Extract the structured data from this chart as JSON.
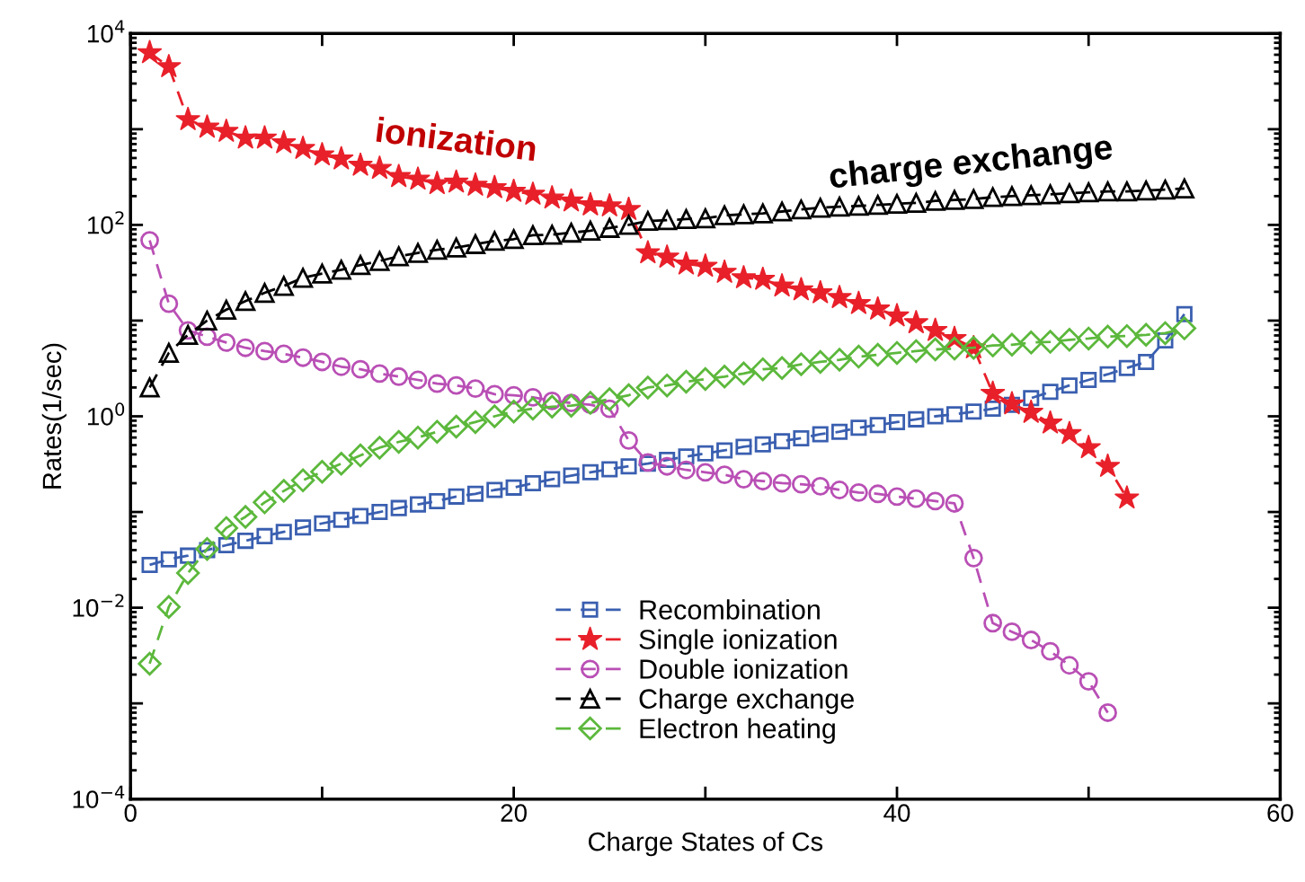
{
  "chart_data": {
    "type": "line",
    "xlabel": "Charge States of Cs",
    "ylabel": "Rates(1/sec)",
    "log": "y",
    "grid": false,
    "legend": "bottom",
    "line_style": "dashed",
    "xlim": [
      0,
      60
    ],
    "xticks": [
      0,
      {
        "value": 10,
        "label": null
      },
      20,
      {
        "value": 30,
        "label": null
      },
      40,
      {
        "value": 50,
        "label": null
      },
      60
    ],
    "ylim": [
      0.0001,
      10000
    ],
    "yticks": [
      {
        "value": 0.0001,
        "label": "10$^{−4}$"
      },
      {
        "value": 0.001,
        "label": null
      },
      {
        "value": 0.01,
        "label": "10$^{−2}$"
      },
      {
        "value": 0.1,
        "label": null
      },
      {
        "value": 1,
        "label": "10$^{0}$"
      },
      {
        "value": 10,
        "label": null
      },
      {
        "value": 100,
        "label": "10$^{2}$"
      },
      {
        "value": 1000,
        "label": null
      },
      {
        "value": 10000,
        "label": "10$^{4}$"
      }
    ],
    "x": [
      1,
      2,
      3,
      4,
      5,
      6,
      7,
      8,
      9,
      10,
      11,
      12,
      13,
      14,
      15,
      16,
      17,
      18,
      19,
      20,
      21,
      22,
      23,
      24,
      25,
      26,
      27,
      28,
      29,
      30,
      31,
      32,
      33,
      34,
      35,
      36,
      37,
      38,
      39,
      40,
      41,
      42,
      43,
      44,
      45,
      46,
      47,
      48,
      49,
      50,
      51,
      52,
      53,
      54,
      55
    ],
    "series": [
      {
        "name": "Recombination",
        "color": "#3a5fb0",
        "marker": "square",
        "values": [
          0.028,
          0.032,
          0.035,
          0.04,
          0.045,
          0.05,
          0.056,
          0.062,
          0.069,
          0.076,
          0.083,
          0.091,
          0.1,
          0.11,
          0.12,
          0.13,
          0.145,
          0.155,
          0.17,
          0.18,
          0.2,
          0.22,
          0.24,
          0.26,
          0.28,
          0.3,
          0.32,
          0.35,
          0.38,
          0.41,
          0.44,
          0.48,
          0.51,
          0.55,
          0.59,
          0.65,
          0.69,
          0.76,
          0.81,
          0.87,
          0.93,
          1.0,
          1.05,
          1.12,
          1.2,
          1.32,
          1.55,
          1.8,
          2.1,
          2.4,
          2.75,
          3.2,
          3.7,
          6.2,
          11.7
        ]
      },
      {
        "name": "Single ionization",
        "color": "#e8202a",
        "marker": "star",
        "values": [
          6300,
          4500,
          1260,
          1050,
          950,
          810,
          810,
          720,
          630,
          540,
          490,
          420,
          390,
          320,
          300,
          270,
          280,
          260,
          245,
          224,
          209,
          191,
          178,
          162,
          158,
          145,
          51,
          46,
          39,
          37,
          32,
          28,
          27,
          23,
          21,
          19.5,
          17.4,
          15.1,
          13.2,
          11.2,
          9.5,
          7.9,
          6.5,
          5.2,
          1.74,
          1.35,
          1.1,
          0.85,
          0.66,
          0.47,
          0.3,
          0.14,
          null,
          null,
          null
        ]
      },
      {
        "name": "Double ionization",
        "color": "#b94fb5",
        "marker": "circle",
        "values": [
          69,
          15,
          7.9,
          6.8,
          5.9,
          5.2,
          4.8,
          4.5,
          4.1,
          3.7,
          3.3,
          3.1,
          2.8,
          2.6,
          2.4,
          2.2,
          2.1,
          1.95,
          1.7,
          1.66,
          1.58,
          1.45,
          1.38,
          1.32,
          1.2,
          0.56,
          0.33,
          0.3,
          0.275,
          0.26,
          0.245,
          0.22,
          0.21,
          0.2,
          0.195,
          0.186,
          0.17,
          0.16,
          0.155,
          0.145,
          0.138,
          0.13,
          0.123,
          0.033,
          0.0069,
          0.0056,
          0.0046,
          0.0035,
          0.0025,
          0.0017,
          0.0008,
          null,
          null,
          null,
          null
        ]
      },
      {
        "name": "Charge exchange",
        "color": "#000000",
        "marker": "triangle",
        "values": [
          2.0,
          4.6,
          7.1,
          10,
          13,
          16,
          19.5,
          23,
          28,
          31,
          34,
          38,
          42,
          47,
          51,
          55,
          58,
          63,
          68,
          71,
          78,
          79,
          83,
          87,
          93,
          100,
          110,
          112,
          115,
          117,
          126,
          129,
          132,
          138,
          145,
          151,
          155,
          158,
          162,
          166,
          170,
          178,
          182,
          186,
          195,
          200,
          204,
          209,
          214,
          219,
          224,
          224,
          229,
          234,
          240
        ]
      },
      {
        "name": "Electron heating",
        "color": "#5cb83c",
        "marker": "diamond",
        "values": [
          0.0026,
          0.0102,
          0.023,
          0.041,
          0.068,
          0.089,
          0.126,
          0.166,
          0.214,
          0.263,
          0.32,
          0.39,
          0.47,
          0.54,
          0.6,
          0.69,
          0.78,
          0.87,
          1.0,
          1.12,
          1.2,
          1.26,
          1.29,
          1.38,
          1.51,
          1.66,
          2.0,
          2.1,
          2.3,
          2.45,
          2.6,
          2.8,
          3.1,
          3.2,
          3.5,
          3.7,
          3.9,
          4.2,
          4.4,
          4.6,
          4.8,
          5.0,
          5.1,
          5.2,
          5.5,
          5.6,
          5.9,
          6.0,
          6.3,
          6.5,
          6.8,
          6.9,
          7.1,
          7.4,
          8.3
        ]
      }
    ],
    "annotations": [
      "ionization",
      "charge exchange"
    ]
  }
}
